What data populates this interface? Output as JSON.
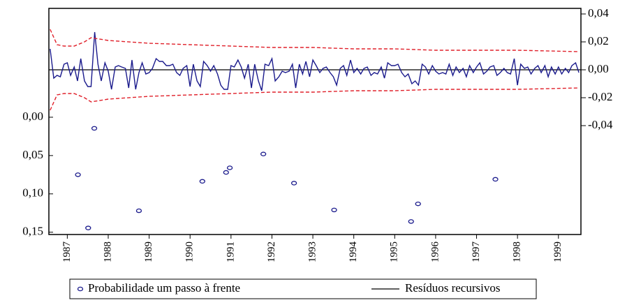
{
  "chart_data": {
    "type": "line",
    "xlim": [
      1986.55,
      1999.55
    ],
    "xticks": [
      1987,
      1988,
      1989,
      1990,
      1991,
      1992,
      1993,
      1994,
      1995,
      1996,
      1997,
      1998,
      1999
    ],
    "ylim": [
      0.153,
      -0.142
    ],
    "yticks": [
      {
        "value": 0,
        "label": "0,00"
      },
      {
        "value": 0.05,
        "label": "0,05"
      },
      {
        "value": 0.1,
        "label": "0,10"
      },
      {
        "value": 0.15,
        "label": "0,15"
      }
    ],
    "y2lim": [
      -0.118,
      0.044
    ],
    "y2ticks": [
      {
        "value": -0.04,
        "label": "-0,04"
      },
      {
        "value": -0.02,
        "label": "-0,02"
      },
      {
        "value": 0,
        "label": "0,00"
      },
      {
        "value": 0.02,
        "label": "0,02"
      },
      {
        "value": 0.04,
        "label": "0,04"
      }
    ],
    "y2_reference": 0,
    "series": [
      {
        "name": "Probabilidade um passo à frente",
        "color": "#1a1a8c",
        "style": "markers",
        "x": [
          1987.26,
          1987.51,
          1987.66,
          1988.75,
          1990.3,
          1990.88,
          1990.97,
          1991.79,
          1992.54,
          1993.52,
          1995.4,
          1995.57,
          1997.46
        ],
        "values": [
          0.075,
          0.1445,
          0.0145,
          0.122,
          0.0836,
          0.072,
          0.066,
          0.048,
          0.086,
          0.121,
          0.136,
          0.113,
          0.081
        ]
      },
      {
        "name": "Resíduos recursivos",
        "color": "#1a1a8c",
        "style": "line",
        "axis": "y2",
        "x": [
          1986.58,
          1986.67,
          1986.75,
          1986.83,
          1986.92,
          1987.0,
          1987.08,
          1987.17,
          1987.25,
          1987.33,
          1987.42,
          1987.5,
          1987.58,
          1987.67,
          1987.75,
          1987.83,
          1987.92,
          1988.0,
          1988.08,
          1988.17,
          1988.25,
          1988.33,
          1988.42,
          1988.5,
          1988.58,
          1988.67,
          1988.75,
          1988.83,
          1988.92,
          1989.0,
          1989.08,
          1989.17,
          1989.25,
          1989.33,
          1989.42,
          1989.5,
          1989.58,
          1989.67,
          1989.75,
          1989.83,
          1989.92,
          1990.0,
          1990.08,
          1990.17,
          1990.25,
          1990.33,
          1990.42,
          1990.5,
          1990.58,
          1990.67,
          1990.75,
          1990.83,
          1990.92,
          1991.0,
          1991.08,
          1991.17,
          1991.25,
          1991.33,
          1991.42,
          1991.5,
          1991.58,
          1991.67,
          1991.75,
          1991.83,
          1991.92,
          1992.0,
          1992.08,
          1992.17,
          1992.25,
          1992.33,
          1992.42,
          1992.5,
          1992.58,
          1992.67,
          1992.75,
          1992.83,
          1992.92,
          1993.0,
          1993.08,
          1993.17,
          1993.25,
          1993.33,
          1993.42,
          1993.5,
          1993.58,
          1993.67,
          1993.75,
          1993.83,
          1993.92,
          1994.0,
          1994.08,
          1994.17,
          1994.25,
          1994.33,
          1994.42,
          1994.5,
          1994.58,
          1994.67,
          1994.75,
          1994.83,
          1994.92,
          1995.0,
          1995.08,
          1995.17,
          1995.25,
          1995.33,
          1995.42,
          1995.5,
          1995.58,
          1995.67,
          1995.75,
          1995.83,
          1995.92,
          1996.0,
          1996.08,
          1996.17,
          1996.25,
          1996.33,
          1996.42,
          1996.5,
          1996.58,
          1996.67,
          1996.75,
          1996.83,
          1996.92,
          1997.0,
          1997.08,
          1997.17,
          1997.25,
          1997.33,
          1997.42,
          1997.5,
          1997.58,
          1997.67,
          1997.75,
          1997.83,
          1997.92,
          1998.0,
          1998.08,
          1998.17,
          1998.25,
          1998.33,
          1998.42,
          1998.5,
          1998.58,
          1998.67,
          1998.75,
          1998.83,
          1998.92,
          1999.0,
          1999.08,
          1999.17,
          1999.25,
          1999.33,
          1999.42,
          1999.5
        ],
        "values": [
          0.015,
          -0.006,
          -0.004,
          -0.005,
          0.004,
          0.005,
          -0.004,
          0.002,
          -0.008,
          0.008,
          -0.008,
          -0.012,
          -0.012,
          0.027,
          0.004,
          -0.008,
          0.005,
          -0.001,
          -0.014,
          0.002,
          0.003,
          0.002,
          0.001,
          -0.013,
          0.007,
          -0.014,
          -0.002,
          0.005,
          -0.003,
          -0.002,
          0.001,
          0.008,
          0.006,
          0.006,
          0.003,
          0.003,
          0.004,
          -0.002,
          -0.004,
          0.001,
          0.003,
          -0.012,
          0.004,
          -0.008,
          -0.012,
          0.006,
          0.003,
          -0.001,
          0.003,
          -0.003,
          -0.011,
          -0.014,
          -0.014,
          0.003,
          0.002,
          0.007,
          0.002,
          -0.006,
          0.004,
          -0.013,
          0.004,
          -0.008,
          -0.015,
          0.004,
          0.003,
          0.008,
          -0.008,
          -0.005,
          -0.001,
          -0.002,
          -0.001,
          0.004,
          -0.013,
          0.004,
          -0.003,
          0.006,
          -0.005,
          0.007,
          0.003,
          -0.002,
          0.001,
          0.002,
          -0.002,
          -0.005,
          -0.011,
          0.001,
          0.003,
          -0.004,
          0.007,
          -0.002,
          0.001,
          -0.003,
          0.001,
          0.002,
          -0.004,
          -0.002,
          -0.003,
          0.002,
          -0.006,
          0.005,
          0.003,
          0.003,
          0.004,
          -0.002,
          -0.005,
          -0.003,
          -0.01,
          -0.008,
          -0.011,
          0.004,
          0.002,
          -0.003,
          0.003,
          -0.001,
          -0.003,
          -0.002,
          -0.003,
          0.004,
          -0.004,
          0.002,
          -0.002,
          0.001,
          -0.005,
          0.003,
          -0.002,
          0.002,
          0.005,
          -0.003,
          -0.001,
          0.002,
          0.003,
          -0.004,
          -0.002,
          0.001,
          -0.002,
          -0.003,
          0.008,
          -0.011,
          0.004,
          0.001,
          0.002,
          -0.003,
          0.001,
          0.003,
          -0.002,
          0.003,
          -0.005,
          0.002,
          -0.003,
          0.002,
          -0.003,
          0.001,
          -0.002,
          0.003,
          0.005,
          -0.002
        ]
      },
      {
        "color": "#e0202a",
        "style": "dashed",
        "axis": "y2",
        "x": [
          1986.58,
          1986.75,
          1986.92,
          1987.17,
          1987.42,
          1987.58,
          1988,
          1989,
          1990,
          1991,
          1992,
          1993,
          1994,
          1995,
          1996,
          1997,
          1998,
          1999.5
        ],
        "values": [
          0.029,
          0.018,
          0.017,
          0.017,
          0.02,
          0.023,
          0.021,
          0.019,
          0.018,
          0.017,
          0.016,
          0.016,
          0.015,
          0.015,
          0.014,
          0.014,
          0.014,
          0.013
        ]
      },
      {
        "color": "#e0202a",
        "style": "dashed",
        "axis": "y2",
        "x": [
          1986.58,
          1986.75,
          1986.92,
          1987.17,
          1987.42,
          1987.58,
          1988,
          1989,
          1990,
          1991,
          1992,
          1993,
          1994,
          1995,
          1996,
          1997,
          1998,
          1999.5
        ],
        "values": [
          -0.029,
          -0.018,
          -0.017,
          -0.017,
          -0.02,
          -0.023,
          -0.021,
          -0.019,
          -0.018,
          -0.017,
          -0.016,
          -0.016,
          -0.015,
          -0.015,
          -0.014,
          -0.014,
          -0.014,
          -0.013
        ]
      }
    ]
  }
}
